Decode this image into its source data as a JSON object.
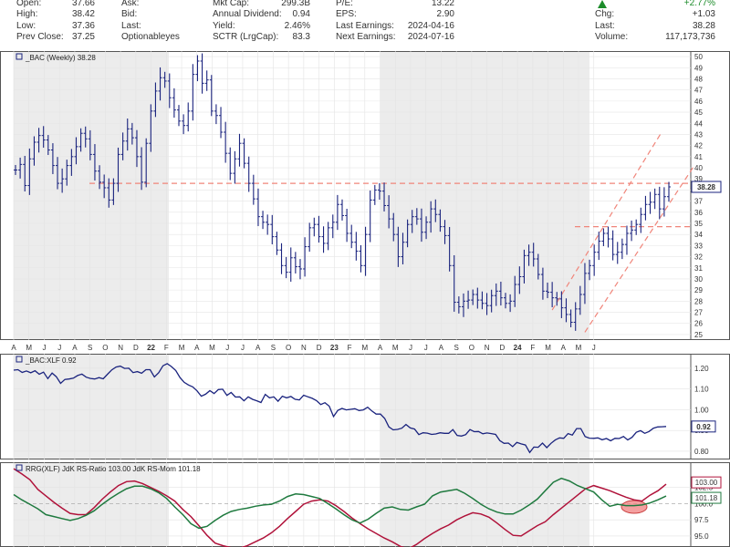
{
  "header": {
    "col1": [
      {
        "label": "Open:",
        "value": "37.66"
      },
      {
        "label": "High:",
        "value": "38.42"
      },
      {
        "label": "Low:",
        "value": "37.36"
      },
      {
        "label": "Prev Close:",
        "value": "37.25"
      }
    ],
    "col2": [
      {
        "label": "Ask:",
        "value": ""
      },
      {
        "label": "Bid:",
        "value": ""
      },
      {
        "label": "Last:",
        "value": ""
      },
      {
        "label": "Optionableyes",
        "value": ""
      }
    ],
    "col3": [
      {
        "label": "Mkt Cap:",
        "value": "299.3B"
      },
      {
        "label": "Annual Dividend:",
        "value": "0.94"
      },
      {
        "label": "Yield:",
        "value": "2.46%"
      },
      {
        "label": "SCTR (LrgCap):",
        "value": "83.3"
      }
    ],
    "col4": [
      {
        "label": "P/E:",
        "value": "13.22"
      },
      {
        "label": "EPS:",
        "value": "2.90"
      },
      {
        "label": "Last Earnings:",
        "value": "2024-04-16"
      },
      {
        "label": "Next Earnings:",
        "value": "2024-07-16"
      }
    ],
    "col5": [
      {
        "label": "",
        "value": "+2.77%"
      },
      {
        "label": "Chg:",
        "value": "+1.03"
      },
      {
        "label": "Last:",
        "value": "38.28"
      },
      {
        "label": "Volume:",
        "value": "117,173,736"
      }
    ],
    "up_arrow_icon": "triangle-up-icon",
    "accent_green": "#1c8c2a"
  },
  "chart_data": [
    {
      "type": "candlestick",
      "title": "_BAC (Weekly) 38.28",
      "last_value": "38.28",
      "y_ticks": [
        "50",
        "49",
        "48",
        "47",
        "46",
        "45",
        "44",
        "43",
        "42",
        "41",
        "40",
        "39",
        "38",
        "37",
        "36",
        "35",
        "34",
        "33",
        "32",
        "31",
        "30",
        "29",
        "28",
        "27",
        "26",
        "25"
      ],
      "ylim": [
        24.5,
        50.5
      ],
      "x_ticks": [
        "A",
        "M",
        "J",
        "J",
        "A",
        "S",
        "O",
        "N",
        "D",
        "22",
        "F",
        "M",
        "A",
        "M",
        "J",
        "J",
        "A",
        "S",
        "O",
        "N",
        "D",
        "23",
        "F",
        "M",
        "A",
        "M",
        "J",
        "J",
        "A",
        "S",
        "O",
        "N",
        "D",
        "24",
        "F",
        "M",
        "A",
        "M",
        "J"
      ],
      "close_series": [
        39.8,
        40.3,
        38.4,
        40.8,
        42.3,
        42.9,
        42.5,
        41.6,
        40.2,
        38.6,
        39.0,
        40.2,
        41.0,
        41.9,
        43.1,
        42.6,
        41.2,
        39.7,
        38.7,
        38.2,
        37.1,
        38.6,
        41.2,
        42.4,
        43.5,
        42.7,
        41.0,
        38.7,
        42.2,
        45.1,
        46.9,
        48.1,
        47.8,
        46.3,
        45.2,
        44.2,
        43.8,
        45.1,
        48.4,
        49.6,
        47.6,
        47.9,
        45.1,
        44.7,
        43.2,
        41.3,
        39.5,
        40.8,
        42.2,
        40.4,
        38.6,
        37.2,
        35.6,
        35.1,
        34.9,
        33.8,
        32.6,
        31.2,
        30.6,
        31.9,
        31.1,
        30.9,
        32.9,
        34.6,
        34.9,
        33.8,
        33.2,
        34.6,
        35.1,
        36.7,
        35.7,
        34.1,
        33.3,
        32.5,
        31.2,
        34.0,
        37.1,
        38.0,
        37.9,
        36.6,
        35.4,
        34.0,
        32.0,
        33.3,
        34.9,
        35.6,
        35.4,
        34.2,
        35.1,
        36.3,
        35.8,
        34.7,
        33.9,
        31.2,
        27.9,
        27.5,
        28.0,
        28.1,
        28.6,
        28.1,
        27.8,
        27.6,
        28.5,
        28.9,
        28.3,
        27.8,
        28.0,
        29.5,
        30.2,
        32.1,
        32.4,
        31.8,
        30.4,
        28.9,
        28.8,
        28.3,
        28.2,
        27.4,
        26.8,
        26.1,
        27.3,
        28.6,
        30.5,
        31.2,
        32.4,
        33.4,
        34.1,
        33.6,
        32.2,
        32.4,
        33.1,
        34.1,
        34.4,
        34.9,
        35.8,
        36.7,
        36.9,
        37.6,
        36.3,
        37.4,
        38.28
      ],
      "support_resistance": [
        {
          "y": 38.6
        },
        {
          "y": 34.7
        }
      ],
      "channel": {
        "lower": [
          [
            122,
            25.2
          ],
          [
            141,
            38.5
          ]
        ],
        "upper": [
          [
            115,
            27.2
          ],
          [
            134,
            41.5
          ]
        ]
      }
    },
    {
      "type": "line",
      "title": "_BAC:XLF 0.92",
      "last_value": "0.92",
      "y_ticks": [
        "1.20",
        "1.10",
        "1.00",
        "0.90",
        "0.80"
      ],
      "ylim": [
        0.76,
        1.27
      ],
      "color": "#1a237e",
      "values": [
        1.191,
        1.193,
        1.18,
        1.187,
        1.178,
        1.188,
        1.171,
        1.181,
        1.15,
        1.177,
        1.159,
        1.127,
        1.146,
        1.148,
        1.152,
        1.165,
        1.172,
        1.157,
        1.151,
        1.148,
        1.155,
        1.149,
        1.171,
        1.192,
        1.206,
        1.21,
        1.199,
        1.2,
        1.179,
        1.184,
        1.176,
        1.193,
        1.193,
        1.158,
        1.178,
        1.212,
        1.222,
        1.208,
        1.189,
        1.155,
        1.132,
        1.119,
        1.11,
        1.091,
        1.065,
        1.075,
        1.092,
        1.078,
        1.097,
        1.099,
        1.069,
        1.083,
        1.061,
        1.062,
        1.043,
        1.062,
        1.05,
        1.043,
        1.035,
        1.074,
        1.057,
        1.062,
        1.041,
        1.065,
        1.057,
        1.064,
        1.05,
        1.047,
        1.07,
        1.062,
        1.055,
        1.044,
        1.025,
        1.034,
        1.017,
        0.967,
        0.997,
        1.006,
        0.999,
        1.002,
        1.005,
        0.996,
        0.999,
        1.012,
        0.994,
        0.979,
        0.979,
        0.958,
        0.917,
        0.903,
        0.905,
        0.911,
        0.929,
        0.912,
        0.907,
        0.88,
        0.889,
        0.887,
        0.881,
        0.883,
        0.889,
        0.886,
        0.886,
        0.904,
        0.876,
        0.873,
        0.88,
        0.904,
        0.894,
        0.895,
        0.884,
        0.888,
        0.885,
        0.881,
        0.851,
        0.838,
        0.839,
        0.822,
        0.842,
        0.835,
        0.83,
        0.794,
        0.82,
        0.819,
        0.839,
        0.817,
        0.838,
        0.854,
        0.864,
        0.862,
        0.885,
        0.878,
        0.909,
        0.909,
        0.871,
        0.863,
        0.862,
        0.864,
        0.855,
        0.861,
        0.85,
        0.862,
        0.861,
        0.871,
        0.854,
        0.867,
        0.891,
        0.899,
        0.886,
        0.895,
        0.911,
        0.917,
        0.918,
        0.919
      ]
    },
    {
      "type": "line",
      "title": "RRG(XLF) JdK RS-Ratio 103.00 JdK RS-Mom 101.18",
      "y_ticks": [
        "102.5",
        "100.0",
        "97.5",
        "95.0"
      ],
      "ylim": [
        93.3,
        106.4
      ],
      "series": [
        {
          "name": "JdK RS-Ratio",
          "color": "#b0123a",
          "last_label": "103.00",
          "values": [
            105.4,
            104.6,
            103.7,
            102.2,
            101.2,
            100.2,
            99.3,
            98.5,
            98.3,
            98.3,
            99.4,
            100.7,
            101.8,
            102.8,
            103.4,
            103.5,
            103.1,
            102.5,
            101.9,
            101.2,
            100.4,
            99.1,
            98.0,
            96.6,
            95.1,
            93.9,
            93.5,
            93.2,
            93.1,
            93.5,
            94.1,
            94.7,
            95.5,
            96.5,
            97.7,
            98.8,
            99.9,
            100.4,
            100.6,
            100.4,
            99.7,
            98.8,
            97.8,
            96.9,
            96.1,
            95.4,
            94.7,
            94.1,
            93.4,
            93.0,
            93.7,
            94.6,
            95.4,
            96.1,
            96.7,
            97.5,
            98.1,
            98.6,
            98.4,
            97.9,
            97.0,
            96.0,
            95.1,
            95.0,
            95.8,
            96.6,
            97.2,
            98.3,
            99.3,
            100.3,
            101.3,
            102.3,
            102.8,
            102.4,
            102.0,
            101.5,
            101.0,
            100.6,
            100.4,
            101.3,
            102.0,
            103.0
          ]
        },
        {
          "name": "JdK RS-Mom",
          "color": "#1f7a3f",
          "last_label": "101.18",
          "values": [
            101.4,
            100.6,
            99.9,
            99.2,
            98.3,
            98.0,
            97.7,
            97.4,
            97.7,
            98.2,
            98.9,
            99.9,
            100.8,
            101.6,
            102.3,
            102.7,
            102.7,
            102.3,
            101.7,
            100.8,
            99.5,
            98.3,
            96.9,
            96.2,
            96.5,
            97.4,
            98.2,
            98.8,
            99.1,
            99.3,
            99.6,
            99.8,
            99.9,
            100.4,
            101.1,
            101.5,
            101.4,
            101.1,
            100.8,
            100.0,
            99.2,
            98.3,
            97.5,
            97.0,
            97.6,
            98.5,
            99.3,
            99.5,
            99.1,
            99.0,
            99.5,
            99.9,
            101.2,
            101.8,
            102.0,
            102.2,
            101.6,
            100.8,
            99.9,
            99.2,
            98.7,
            98.4,
            98.4,
            99.0,
            99.8,
            100.7,
            102.0,
            103.3,
            103.9,
            103.5,
            102.8,
            102.3,
            101.8,
            100.6,
            99.6,
            99.9,
            99.7,
            99.7,
            99.8,
            100.1,
            100.6,
            101.18
          ]
        }
      ]
    }
  ]
}
